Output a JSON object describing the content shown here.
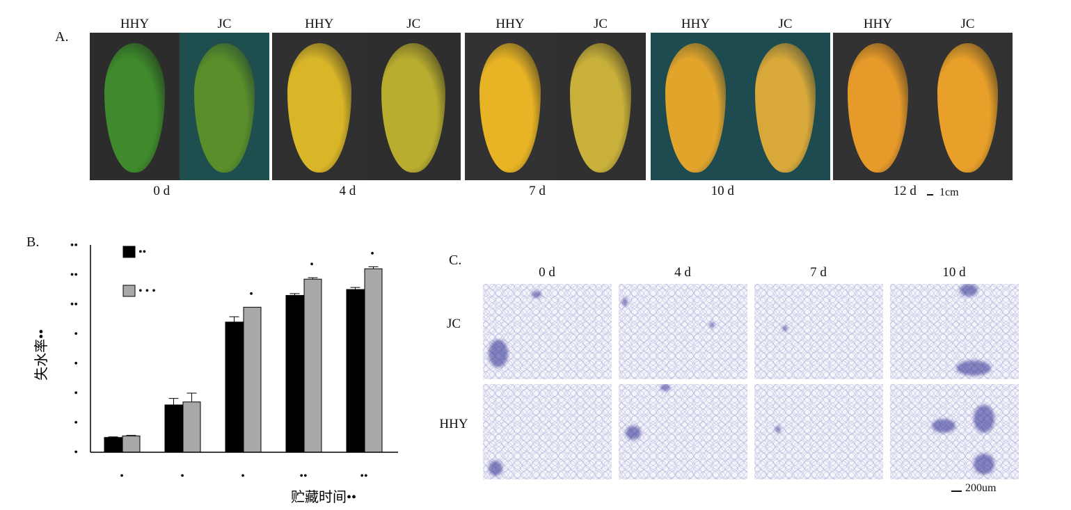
{
  "panelA": {
    "letter": "A.",
    "groups": [
      {
        "left_label": "HHY",
        "right_label": "JC",
        "day": "0 d",
        "left_bg": "#2c2c2c",
        "right_bg": "#1f4e4e",
        "left_fruit": "#3e8a2c",
        "right_fruit": "#5a8e2a"
      },
      {
        "left_label": "HHY",
        "right_label": "JC",
        "day": "4 d",
        "left_bg": "#303030",
        "right_bg": "#2e2e2e",
        "left_fruit": "#d9b628",
        "right_fruit": "#b8ad2f"
      },
      {
        "left_label": "HHY",
        "right_label": "JC",
        "day": "7 d",
        "left_bg": "#323232",
        "right_bg": "#303030",
        "left_fruit": "#e8b425",
        "right_fruit": "#c8b03a"
      },
      {
        "left_label": "HHY",
        "right_label": "JC",
        "day": "10 d",
        "left_bg": "#1d4b50",
        "right_bg": "#1d4b50",
        "left_fruit": "#e2a52c",
        "right_fruit": "#d9a83a"
      },
      {
        "left_label": "HHY",
        "right_label": "JC",
        "day": "12 d",
        "left_bg": "#323232",
        "right_bg": "#323232",
        "left_fruit": "#e69a2a",
        "right_fruit": "#e8a02a"
      }
    ],
    "scale_label": "1cm"
  },
  "panelB": {
    "letter": "B.",
    "ylabel": "失水率••",
    "xlabel": "贮藏时间••",
    "legend": [
      {
        "label": "••",
        "color": "#000000"
      },
      {
        "label": "• • •",
        "color": "#a8a8a8"
      }
    ]
  },
  "chart_data": {
    "type": "bar",
    "categories": [
      "•",
      "•",
      "•",
      "••",
      "••"
    ],
    "ytick_labels": [
      "•",
      "•",
      "•",
      "•",
      "•",
      "••",
      "••",
      "••"
    ],
    "ylim": [
      0,
      7
    ],
    "series": [
      {
        "name": "••",
        "color": "#000000",
        "values": [
          0.5,
          1.6,
          4.4,
          5.3,
          5.5
        ],
        "errors": [
          0.02,
          0.22,
          0.18,
          0.06,
          0.07
        ]
      },
      {
        "name": "• • •",
        "color": "#a8a8a8",
        "values": [
          0.55,
          1.7,
          4.9,
          5.85,
          6.2
        ],
        "errors": [
          0.02,
          0.3,
          0.0,
          0.05,
          0.07
        ]
      }
    ],
    "significance": [
      "",
      "",
      "•",
      "•",
      "•"
    ]
  },
  "panelC": {
    "letter": "C.",
    "columns": [
      "0 d",
      "4 d",
      "7 d",
      "10 d"
    ],
    "rows": [
      "JC",
      "HHY"
    ],
    "scale_label": "200um"
  }
}
